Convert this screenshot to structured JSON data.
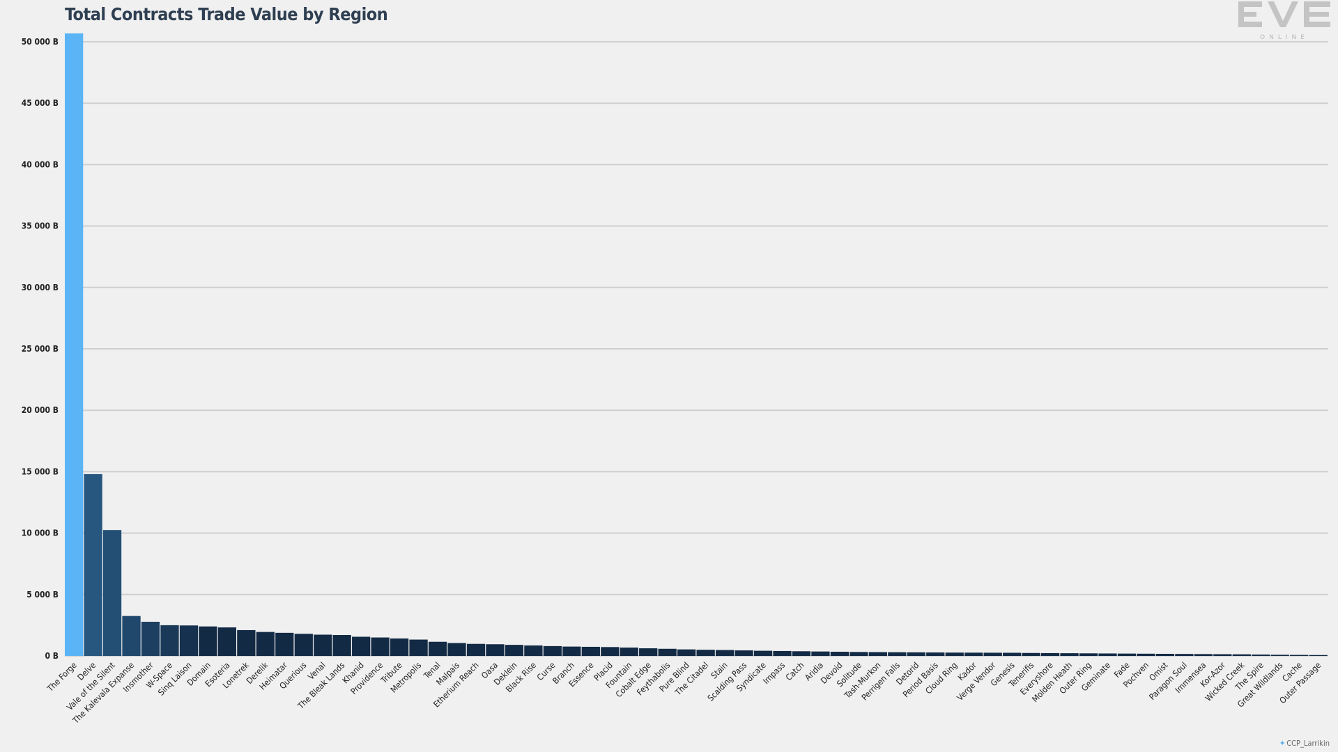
{
  "title": "Total Contracts Trade Value by Region",
  "logo": {
    "text": "EVE",
    "subtext": "ONLINE"
  },
  "credit": {
    "icon": "twitter-icon",
    "handle": "CCP_Larrikin"
  },
  "colors": {
    "highlight": "#5ab4f5",
    "dark_start": "#27567f",
    "dark_end": "#132a45",
    "grid": "#cfcfcf",
    "background": "#f0f0f0"
  },
  "chart_data": {
    "type": "bar",
    "title": "Total Contracts Trade Value by Region",
    "ylim": [
      0,
      50000
    ],
    "yticks": [
      0,
      5000,
      10000,
      15000,
      20000,
      25000,
      30000,
      35000,
      40000,
      45000,
      50000
    ],
    "ytick_labels": [
      "0 B",
      "5 000 B",
      "10 000 B",
      "15 000 B",
      "20 000 B",
      "25 000 B",
      "30 000 B",
      "35 000 B",
      "40 000 B",
      "45 000 B",
      "50 000 B"
    ],
    "grid": true,
    "categories": [
      "The Forge",
      "Delve",
      "Vale of the Silent",
      "The Kalevala Expanse",
      "Insmother",
      "W-Space",
      "Sinq Laison",
      "Domain",
      "Esoteria",
      "Lonetrek",
      "Derelik",
      "Heimatar",
      "Querious",
      "Venal",
      "The Bleak Lands",
      "Khanid",
      "Providence",
      "Tribute",
      "Metropolis",
      "Tenal",
      "Malpais",
      "Etherium Reach",
      "Oasa",
      "Deklein",
      "Black Rise",
      "Curse",
      "Branch",
      "Essence",
      "Placid",
      "Fountain",
      "Cobalt Edge",
      "Feythabolis",
      "Pure Blind",
      "The Citadel",
      "Stain",
      "Scalding Pass",
      "Syndicate",
      "Impass",
      "Catch",
      "Aridia",
      "Devoid",
      "Solitude",
      "Tash-Murkon",
      "Perrigen Falls",
      "Detorid",
      "Period Basis",
      "Cloud Ring",
      "Kador",
      "Verge Vendor",
      "Genesis",
      "Tenerifis",
      "Everyshore",
      "Molden Heath",
      "Outer Ring",
      "Geminate",
      "Fade",
      "Pochven",
      "Omist",
      "Paragon Soul",
      "Immensea",
      "Kor-Azor",
      "Wicked Creek",
      "The Spire",
      "Great Wildlands",
      "Cache",
      "Outer Passage"
    ],
    "values": [
      50700,
      14800,
      10250,
      3250,
      2780,
      2500,
      2480,
      2400,
      2320,
      2100,
      1950,
      1880,
      1800,
      1730,
      1700,
      1560,
      1500,
      1420,
      1330,
      1150,
      1050,
      980,
      950,
      900,
      850,
      800,
      760,
      740,
      720,
      680,
      620,
      580,
      530,
      500,
      480,
      450,
      420,
      400,
      380,
      360,
      340,
      320,
      310,
      300,
      290,
      280,
      270,
      265,
      260,
      255,
      240,
      230,
      220,
      210,
      200,
      190,
      180,
      170,
      160,
      150,
      140,
      130,
      110,
      90,
      80,
      70
    ]
  }
}
